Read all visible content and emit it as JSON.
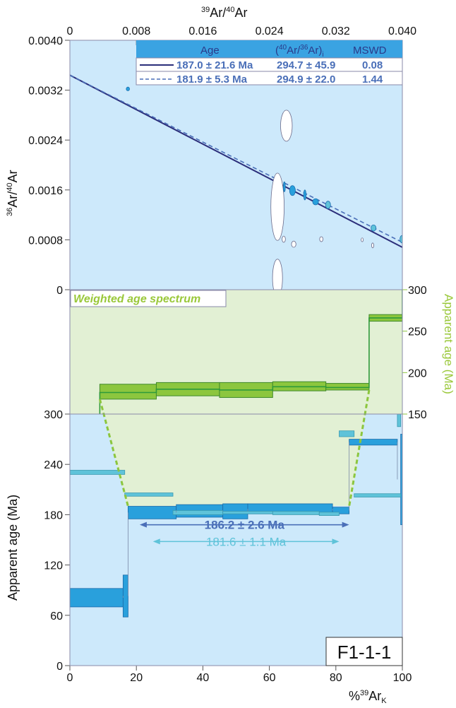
{
  "sample_label": "F1-1-1",
  "colors": {
    "panel_bg": "#cde9fb",
    "green": "#8cc63e",
    "green_light": "#e2f0d4",
    "blue": "#29a0dc",
    "blue_light": "#5fc3d9",
    "navy": "#2b2e7a",
    "dash_blue": "#4a6fb8"
  },
  "chart_data": [
    {
      "type": "scatter",
      "title": "",
      "xlabel": "39Ar/40Ar",
      "ylabel": "36Ar/40Ar",
      "xlim": [
        0,
        0.04
      ],
      "ylim": [
        0,
        0.004
      ],
      "xticks": [
        "0",
        "0.008",
        "0.016",
        "0.024",
        "0.032",
        "0.040"
      ],
      "yticks": [
        "0",
        "0.0008",
        "0.0016",
        "0.0024",
        "0.0032",
        "0.0040"
      ],
      "legend": {
        "placement": "top-right",
        "headers": [
          "Age",
          "(40Ar/36Ar)i",
          "MSWD"
        ],
        "rows": [
          {
            "age": "187.0 ± 21.6 Ma",
            "ratio": "294.7 ± 45.9",
            "mswd": "0.08",
            "style": "solid"
          },
          {
            "age": "181.9 ± 5.3 Ma",
            "ratio": "294.9 ± 22.0",
            "mswd": "1.44",
            "style": "dashed"
          }
        ]
      },
      "isochrons": [
        {
          "style": "solid",
          "points": [
            [
              0,
              0.00344
            ],
            [
              0.04,
              0.00068
            ]
          ]
        },
        {
          "style": "dashed",
          "points": [
            [
              0,
              0.00344
            ],
            [
              0.04,
              0.00076
            ]
          ]
        }
      ],
      "ellipses": [
        {
          "x": 0.00698,
          "y": 0.00322,
          "sx": 0.0002,
          "sy": 3e-05,
          "fill": "blue"
        },
        {
          "x": 0.02605,
          "y": 0.00263,
          "sx": 0.0007,
          "sy": 0.00025,
          "fill": "white"
        },
        {
          "x": 0.02498,
          "y": 0.00133,
          "sx": 0.0008,
          "sy": 0.00054,
          "fill": "white"
        },
        {
          "x": 0.02498,
          "y": 0.00019,
          "sx": 0.0006,
          "sy": 0.0003,
          "fill": "white"
        },
        {
          "x": 0.02573,
          "y": 0.00081,
          "sx": 0.0002,
          "sy": 5e-05,
          "fill": "white"
        },
        {
          "x": 0.02693,
          "y": 0.00073,
          "sx": 0.00027,
          "sy": 5e-05,
          "fill": "white"
        },
        {
          "x": 0.03025,
          "y": 0.00081,
          "sx": 0.0002,
          "sy": 4e-05,
          "fill": "white"
        },
        {
          "x": 0.03517,
          "y": 0.0008,
          "sx": 0.00013,
          "sy": 3e-05,
          "fill": "white"
        },
        {
          "x": 0.03643,
          "y": 0.00071,
          "sx": 0.00013,
          "sy": 4e-05,
          "fill": "white"
        },
        {
          "x": 0.0258,
          "y": 0.00165,
          "sx": 0.00012,
          "sy": 8e-05,
          "fill": "blue"
        },
        {
          "x": 0.02678,
          "y": 0.00159,
          "sx": 0.00035,
          "sy": 8e-05,
          "fill": "blue"
        },
        {
          "x": 0.02827,
          "y": 0.00152,
          "sx": 0.00015,
          "sy": 8e-05,
          "fill": "blue"
        },
        {
          "x": 0.02956,
          "y": 0.00141,
          "sx": 0.00035,
          "sy": 5e-05,
          "fill": "blue"
        },
        {
          "x": 0.03106,
          "y": 0.00136,
          "sx": 0.0003,
          "sy": 6e-05,
          "fill": "blue_light"
        },
        {
          "x": 0.03653,
          "y": 0.00099,
          "sx": 0.0003,
          "sy": 5e-05,
          "fill": "blue_light"
        },
        {
          "x": 0.03996,
          "y": 0.00081,
          "sx": 0.00025,
          "sy": 6e-05,
          "fill": "blue_light"
        }
      ]
    },
    {
      "type": "bar",
      "title": "Weighted age spectrum",
      "ylabel": "Apparent age (Ma)",
      "xlim": [
        0,
        100
      ],
      "ylim": [
        150,
        300
      ],
      "yticks": [
        "150",
        "200",
        "250",
        "300"
      ],
      "steps": [
        {
          "x0": 9,
          "x1": 26,
          "lo": 168,
          "hi": 186
        },
        {
          "x0": 26,
          "x1": 45,
          "lo": 172,
          "hi": 188
        },
        {
          "x0": 45,
          "x1": 61,
          "lo": 170,
          "hi": 188
        },
        {
          "x0": 61,
          "x1": 77,
          "lo": 178,
          "hi": 189
        },
        {
          "x0": 77,
          "x1": 90,
          "lo": 179,
          "hi": 187
        },
        {
          "x0": 90,
          "x1": 100,
          "lo": 262,
          "hi": 270
        }
      ],
      "step_outline": [
        [
          9,
          150
        ],
        [
          9,
          176
        ],
        [
          26,
          176
        ],
        [
          26,
          180
        ],
        [
          45,
          180
        ],
        [
          45,
          179
        ],
        [
          61,
          179
        ],
        [
          61,
          183
        ],
        [
          77,
          183
        ],
        [
          77,
          182
        ],
        [
          90,
          182
        ],
        [
          90,
          266
        ],
        [
          100,
          266
        ],
        [
          100,
          300
        ]
      ]
    },
    {
      "type": "bar",
      "title": "",
      "xlabel": "%39ArK",
      "ylabel": "Apparent age (Ma)",
      "xlim": [
        0,
        100
      ],
      "ylim": [
        0,
        300
      ],
      "xticks": [
        "0",
        "20",
        "40",
        "60",
        "80",
        "100"
      ],
      "yticks": [
        "0",
        "60",
        "120",
        "180",
        "240",
        "300"
      ],
      "series": [
        {
          "name": "",
          "color": "blue",
          "steps": [
            {
              "x0": 0,
              "x1": 16,
              "lo": 70,
              "hi": 92
            },
            {
              "x0": 16,
              "x1": 17.5,
              "lo": 58,
              "hi": 108
            },
            {
              "x0": 17.5,
              "x1": 32,
              "lo": 175,
              "hi": 190
            },
            {
              "x0": 32,
              "x1": 46,
              "lo": 177,
              "hi": 192
            },
            {
              "x0": 46,
              "x1": 53.5,
              "lo": 175,
              "hi": 193
            },
            {
              "x0": 53.5,
              "x1": 79,
              "lo": 181,
              "hi": 193
            },
            {
              "x0": 79,
              "x1": 84,
              "lo": 181,
              "hi": 189
            },
            {
              "x0": 84,
              "x1": 98.5,
              "lo": 263,
              "hi": 270
            },
            {
              "x0": 99.5,
              "x1": 100,
              "lo": 168,
              "hi": 276
            }
          ]
        },
        {
          "name": "",
          "color": "blue_light",
          "steps": [
            {
              "x0": 0,
              "x1": 16.5,
              "lo": 228,
              "hi": 233
            },
            {
              "x0": 16.5,
              "x1": 31,
              "lo": 202,
              "hi": 206
            },
            {
              "x0": 31,
              "x1": 46,
              "lo": 180,
              "hi": 185
            },
            {
              "x0": 46,
              "x1": 61,
              "lo": 181,
              "hi": 184
            },
            {
              "x0": 61,
              "x1": 75,
              "lo": 180,
              "hi": 184
            },
            {
              "x0": 75,
              "x1": 81,
              "lo": 179,
              "hi": 183
            },
            {
              "x0": 81,
              "x1": 85.5,
              "lo": 273,
              "hi": 280
            },
            {
              "x0": 85.5,
              "x1": 99.5,
              "lo": 201,
              "hi": 205
            },
            {
              "x0": 98.5,
              "x1": 99.5,
              "lo": 285,
              "hi": 300
            }
          ]
        }
      ],
      "plateaus": [
        {
          "label": "186.2 ± 2.6 Ma",
          "age": 186.2,
          "x0": 21,
          "x1": 84,
          "color": "dash_blue"
        },
        {
          "label": "181.6 ± 1.1 Ma",
          "age": 181.6,
          "x0": 25,
          "x1": 81,
          "color": "blue_light"
        }
      ]
    }
  ]
}
